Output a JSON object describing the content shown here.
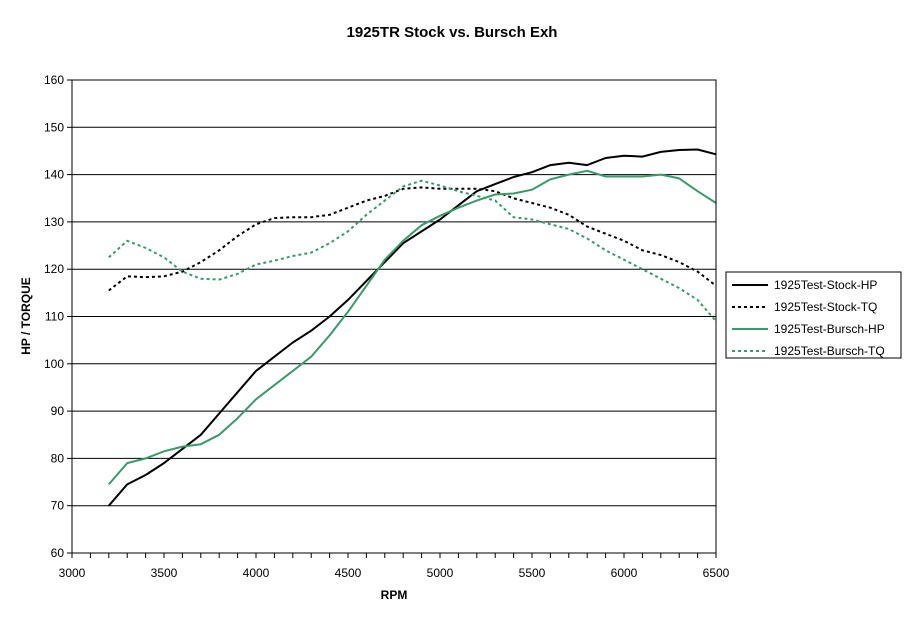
{
  "chart_data": {
    "type": "line",
    "title": "1925TR Stock vs. Bursch Exh",
    "xlabel": "RPM",
    "ylabel": "HP / TORQUE",
    "xlim": [
      3000,
      6500
    ],
    "ylim": [
      60,
      160
    ],
    "x_ticks": [
      "3000",
      "3500",
      "4000",
      "4500",
      "5000",
      "5500",
      "6000",
      "6500"
    ],
    "y_ticks": [
      "60",
      "70",
      "80",
      "90",
      "100",
      "110",
      "120",
      "130",
      "140",
      "150",
      "160"
    ],
    "grid": "horizontal",
    "legend_position": "right",
    "series": [
      {
        "name": "1925Test-Stock-HP",
        "color": "#000000",
        "style": "solid",
        "points": [
          [
            3200,
            70
          ],
          [
            3300,
            74.5
          ],
          [
            3400,
            76.5
          ],
          [
            3500,
            79
          ],
          [
            3600,
            82
          ],
          [
            3700,
            85
          ],
          [
            3800,
            89.5
          ],
          [
            3900,
            94
          ],
          [
            4000,
            98.5
          ],
          [
            4100,
            101.5
          ],
          [
            4200,
            104.5
          ],
          [
            4300,
            107
          ],
          [
            4400,
            110
          ],
          [
            4500,
            113.5
          ],
          [
            4600,
            117.5
          ],
          [
            4700,
            121.5
          ],
          [
            4800,
            125.5
          ],
          [
            4900,
            128
          ],
          [
            5000,
            130.5
          ],
          [
            5100,
            133.5
          ],
          [
            5200,
            136.5
          ],
          [
            5300,
            138
          ],
          [
            5400,
            139.5
          ],
          [
            5500,
            140.5
          ],
          [
            5600,
            142
          ],
          [
            5700,
            142.5
          ],
          [
            5800,
            142
          ],
          [
            5900,
            143.5
          ],
          [
            6000,
            144
          ],
          [
            6100,
            143.8
          ],
          [
            6200,
            144.8
          ],
          [
            6300,
            145.2
          ],
          [
            6400,
            145.3
          ],
          [
            6500,
            144.3
          ]
        ]
      },
      {
        "name": "1925Test-Stock-TQ",
        "color": "#000000",
        "style": "dotted",
        "points": [
          [
            3200,
            115.5
          ],
          [
            3300,
            118.5
          ],
          [
            3400,
            118.3
          ],
          [
            3500,
            118.5
          ],
          [
            3600,
            119.5
          ],
          [
            3700,
            121.5
          ],
          [
            3800,
            124
          ],
          [
            3900,
            127
          ],
          [
            4000,
            129.5
          ],
          [
            4100,
            130.8
          ],
          [
            4200,
            131
          ],
          [
            4300,
            131
          ],
          [
            4400,
            131.5
          ],
          [
            4500,
            133
          ],
          [
            4600,
            134.5
          ],
          [
            4700,
            135.5
          ],
          [
            4800,
            137
          ],
          [
            4900,
            137.3
          ],
          [
            5000,
            137
          ],
          [
            5100,
            137
          ],
          [
            5200,
            137
          ],
          [
            5300,
            136.5
          ],
          [
            5400,
            135
          ],
          [
            5500,
            134
          ],
          [
            5600,
            133
          ],
          [
            5700,
            131.5
          ],
          [
            5800,
            129
          ],
          [
            5900,
            127.5
          ],
          [
            6000,
            126
          ],
          [
            6100,
            124
          ],
          [
            6200,
            123
          ],
          [
            6300,
            121.5
          ],
          [
            6400,
            119.5
          ],
          [
            6500,
            116.5
          ]
        ]
      },
      {
        "name": "1925Test-Bursch-HP",
        "color": "#3a9a6a",
        "style": "solid",
        "points": [
          [
            3200,
            74.5
          ],
          [
            3300,
            79
          ],
          [
            3400,
            80
          ],
          [
            3500,
            81.5
          ],
          [
            3600,
            82.5
          ],
          [
            3700,
            83
          ],
          [
            3800,
            85
          ],
          [
            3900,
            88.5
          ],
          [
            4000,
            92.5
          ],
          [
            4100,
            95.5
          ],
          [
            4200,
            98.5
          ],
          [
            4300,
            101.5
          ],
          [
            4400,
            106
          ],
          [
            4500,
            111
          ],
          [
            4600,
            116.5
          ],
          [
            4700,
            122
          ],
          [
            4800,
            126
          ],
          [
            4900,
            129.3
          ],
          [
            5000,
            131.3
          ],
          [
            5100,
            133
          ],
          [
            5200,
            134.5
          ],
          [
            5300,
            135.8
          ],
          [
            5400,
            136
          ],
          [
            5500,
            136.8
          ],
          [
            5600,
            139
          ],
          [
            5700,
            140
          ],
          [
            5800,
            140.8
          ],
          [
            5900,
            139.6
          ],
          [
            6000,
            139.6
          ],
          [
            6100,
            139.6
          ],
          [
            6200,
            140
          ],
          [
            6300,
            139.2
          ],
          [
            6400,
            136.5
          ],
          [
            6500,
            134
          ]
        ]
      },
      {
        "name": "1925Test-Bursch-TQ",
        "color": "#3a9a6a",
        "style": "dotted",
        "points": [
          [
            3200,
            122.5
          ],
          [
            3300,
            126
          ],
          [
            3400,
            124.5
          ],
          [
            3500,
            122.5
          ],
          [
            3600,
            119.5
          ],
          [
            3700,
            118
          ],
          [
            3800,
            117.8
          ],
          [
            3900,
            119
          ],
          [
            4000,
            121
          ],
          [
            4100,
            121.8
          ],
          [
            4200,
            122.8
          ],
          [
            4300,
            123.5
          ],
          [
            4400,
            125.5
          ],
          [
            4500,
            128
          ],
          [
            4600,
            131.5
          ],
          [
            4700,
            134.5
          ],
          [
            4800,
            137.5
          ],
          [
            4900,
            138.7
          ],
          [
            5000,
            137.7
          ],
          [
            5100,
            136.5
          ],
          [
            5200,
            135.5
          ],
          [
            5300,
            134.5
          ],
          [
            5400,
            131
          ],
          [
            5500,
            130.5
          ],
          [
            5600,
            129.5
          ],
          [
            5700,
            128.5
          ],
          [
            5800,
            126.5
          ],
          [
            5900,
            124
          ],
          [
            6000,
            122
          ],
          [
            6100,
            120
          ],
          [
            6200,
            118
          ],
          [
            6300,
            116
          ],
          [
            6400,
            113.5
          ],
          [
            6500,
            109
          ]
        ]
      }
    ]
  }
}
